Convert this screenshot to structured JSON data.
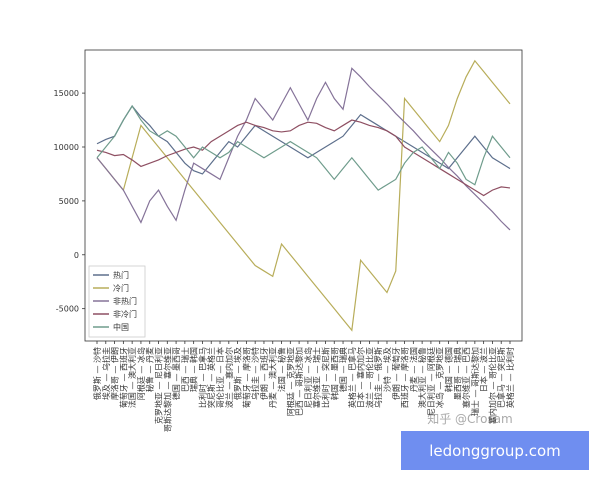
{
  "chart_data": {
    "type": "line",
    "categories": [
      "俄罗斯 — 沙特",
      "埃及 — 乌拉圭",
      "摩洛哥 — 伊朗",
      "葡萄牙 — 西班牙",
      "法国 — 澳大利亚",
      "阿根廷 — 冰岛",
      "秘鲁 — 丹麦",
      "克罗地亚 — 尼日利亚",
      "哥斯达黎加 — 塞尔维亚",
      "德国 — 墨西哥",
      "巴西 — 瑞士",
      "瑞典 — 韩国",
      "比利时 — 巴拿马",
      "突尼斯 — 英格兰",
      "哥伦比亚 — 日本",
      "波兰 — 塞内加尔",
      "俄罗斯 — 埃及",
      "葡萄牙 — 摩洛哥",
      "乌拉圭 — 沙特",
      "伊朗 — 西班牙",
      "丹麦 — 澳大利亚",
      "法国 — 秘鲁",
      "阿根廷 — 克罗地亚",
      "巴西 — 哥斯达黎加",
      "尼日利亚 — 冰岛",
      "塞尔维亚 — 瑞士",
      "比利时 — 突尼斯",
      "韩国 — 墨西哥",
      "德国 — 瑞典",
      "英格兰 — 巴拿马",
      "日本 — 塞内加尔",
      "波兰 — 哥伦比亚",
      "乌拉圭 — 俄罗斯",
      "沙特 — 埃及",
      "伊朗 — 葡萄牙",
      "西班牙 — 摩洛哥",
      "丹麦 — 法国",
      "澳大利亚 — 秘鲁",
      "尼日利亚 — 阿根廷",
      "冰岛 — 克罗地亚",
      "韩国 — 德国",
      "墨西哥 — 瑞典",
      "塞尔维亚 — 巴西",
      "瑞士 — 哥斯达黎加",
      "日本 — 波兰",
      "塞内加尔 — 哥伦比亚",
      "巴拿马 — 突尼斯",
      "英格兰 — 比利时"
    ],
    "series": [
      {
        "name": "热门",
        "color": "#5d6f8c",
        "values": [
          10300,
          10700,
          11000,
          12500,
          13800,
          12800,
          12000,
          11000,
          10500,
          9500,
          8500,
          7800,
          7500,
          8500,
          9500,
          10500,
          10000,
          11000,
          12000,
          11500,
          11000,
          10500,
          10000,
          9500,
          9000,
          9500,
          10000,
          10500,
          11000,
          12000,
          13000,
          12500,
          12000,
          11500,
          11000,
          10500,
          10000,
          9500,
          9000,
          8500,
          8000,
          9000,
          10000,
          11000,
          10000,
          9000,
          8500,
          8000
        ]
      },
      {
        "name": "冷门",
        "color": "#b8ad5a",
        "values": [
          9000,
          8000,
          7000,
          6000,
          9000,
          12000,
          11000,
          10000,
          9000,
          8000,
          7000,
          6000,
          5000,
          4000,
          3000,
          2000,
          1000,
          0,
          -1000,
          -1500,
          -2000,
          1000,
          0,
          -1000,
          -2000,
          -3000,
          -4000,
          -5000,
          -6000,
          -7000,
          -500,
          -1500,
          -2500,
          -3500,
          -1500,
          14500,
          13500,
          12500,
          11500,
          10500,
          12000,
          14500,
          16500,
          18000,
          17000,
          16000,
          15000,
          14000
        ]
      },
      {
        "name": "非热门",
        "color": "#857399",
        "values": [
          9000,
          8000,
          7000,
          6000,
          4500,
          3000,
          5000,
          6000,
          4500,
          3200,
          6000,
          8500,
          8000,
          7500,
          7000,
          9000,
          11000,
          12500,
          14500,
          13500,
          12500,
          14000,
          15500,
          14000,
          12500,
          14500,
          16000,
          14500,
          13500,
          17300,
          16500,
          15600,
          14800,
          14000,
          13100,
          12300,
          11500,
          10600,
          9800,
          9000,
          8100,
          7300,
          6400,
          5600,
          4800,
          4000,
          3100,
          2300
        ]
      },
      {
        "name": "非冷门",
        "color": "#8e4f62",
        "values": [
          9700,
          9500,
          9200,
          9300,
          8800,
          8200,
          8500,
          8800,
          9200,
          9500,
          9800,
          10000,
          9700,
          10500,
          11000,
          11500,
          12000,
          12300,
          12000,
          11800,
          11500,
          11400,
          11500,
          12000,
          12300,
          12200,
          11800,
          11500,
          12000,
          12500,
          12300,
          12000,
          11800,
          11500,
          11000,
          10000,
          9500,
          9000,
          8500,
          8000,
          7500,
          7000,
          6500,
          6000,
          5500,
          6000,
          6300,
          6200
        ]
      },
      {
        "name": "中国",
        "color": "#6f9c8c",
        "values": [
          9000,
          10000,
          11000,
          12500,
          13800,
          12500,
          11500,
          11000,
          11500,
          11000,
          10000,
          9000,
          10000,
          9500,
          9000,
          9500,
          10500,
          10000,
          9500,
          9000,
          9500,
          10000,
          10500,
          10000,
          9500,
          9000,
          8000,
          7000,
          8000,
          9000,
          8000,
          7000,
          6000,
          6500,
          7000,
          8500,
          9500,
          10000,
          9000,
          8000,
          9500,
          8500,
          7000,
          6500,
          9000,
          11000,
          10000,
          9000
        ]
      }
    ],
    "ylim": [
      -8000,
      19000
    ],
    "yticks": [
      -5000,
      0,
      5000,
      10000,
      15000
    ],
    "legend": "lower left"
  },
  "watermark": "知乎 @Crosam",
  "banner": "ledonggroup.com"
}
